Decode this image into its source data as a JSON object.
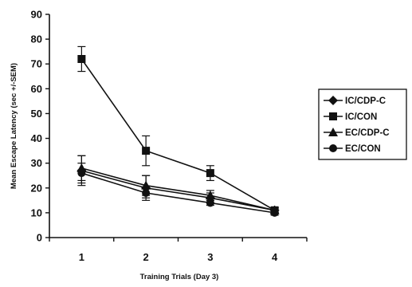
{
  "chart_data": {
    "type": "line",
    "title": "",
    "xlabel": "Training Trials (Day 3)",
    "ylabel": "Mean Escape Latency (sec +/-SEM)",
    "x": [
      1,
      2,
      3,
      4
    ],
    "xlim": [
      0.5,
      4.5
    ],
    "ylim": [
      0,
      90
    ],
    "y_ticks": [
      0,
      10,
      20,
      30,
      40,
      50,
      60,
      70,
      80,
      90
    ],
    "x_tick_labels": [
      "1",
      "2",
      "3",
      "4"
    ],
    "grid": false,
    "legend_position": "right",
    "series": [
      {
        "name": "IC/CDP-C",
        "marker": "diamond",
        "values": [
          27,
          20,
          16,
          11
        ],
        "errors": [
          6,
          5,
          2,
          1
        ]
      },
      {
        "name": "IC/CON",
        "marker": "square",
        "values": [
          72,
          35,
          26,
          11
        ],
        "errors": [
          5,
          6,
          3,
          1
        ]
      },
      {
        "name": "EC/CDP-C",
        "marker": "triangle",
        "values": [
          28,
          21,
          17,
          11
        ],
        "errors": [
          5,
          4,
          2,
          1
        ]
      },
      {
        "name": "EC/CON",
        "marker": "circle",
        "values": [
          26,
          18,
          14,
          10
        ],
        "errors": [
          4,
          2,
          1,
          1
        ]
      }
    ],
    "colors": {
      "ink": "#111111",
      "background": "#ffffff"
    }
  }
}
